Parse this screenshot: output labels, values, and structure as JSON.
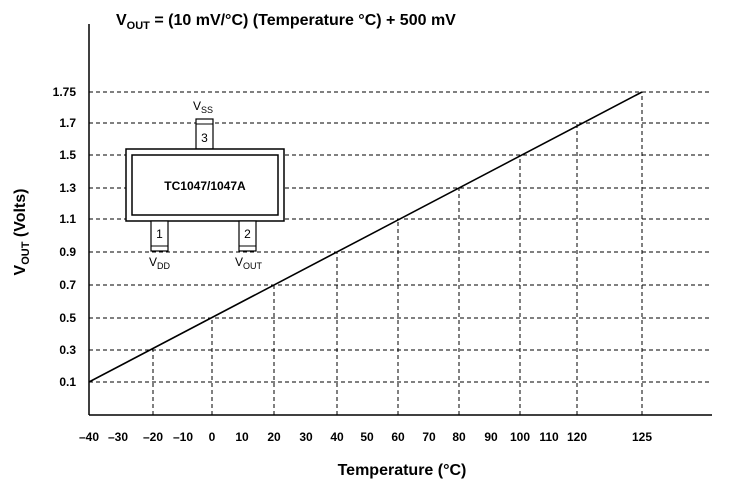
{
  "chart_data": {
    "type": "line",
    "title": {
      "v": "V",
      "v_sub": "OUT",
      "rest": " = (10 mV/°C) (Temperature °C) + 500 mV"
    },
    "xlabel": "Temperature (°C)",
    "ylabel": {
      "v": "V",
      "v_sub": "OUT",
      "rest": " (Volts)"
    },
    "x_ticks": [
      "–40",
      "–30",
      "–20",
      "–10",
      "0",
      "10",
      "20",
      "30",
      "40",
      "50",
      "60",
      "70",
      "80",
      "90",
      "100",
      "110",
      "120",
      "125"
    ],
    "y_ticks": [
      "1.75",
      "1.7",
      "1.5",
      "1.3",
      "1.1",
      "0.9",
      "0.7",
      "0.5",
      "0.3",
      "0.1"
    ],
    "series": [
      {
        "x": [
          -40,
          125
        ],
        "y": [
          0.1,
          1.75
        ]
      }
    ],
    "grid": true,
    "package": {
      "part_label": "TC1047/1047A",
      "pins": [
        {
          "number": "1",
          "name": "V",
          "name_sub": "DD"
        },
        {
          "number": "2",
          "name": "V",
          "name_sub": "OUT"
        },
        {
          "number": "3",
          "name": "V",
          "name_sub": "SS"
        }
      ]
    }
  }
}
